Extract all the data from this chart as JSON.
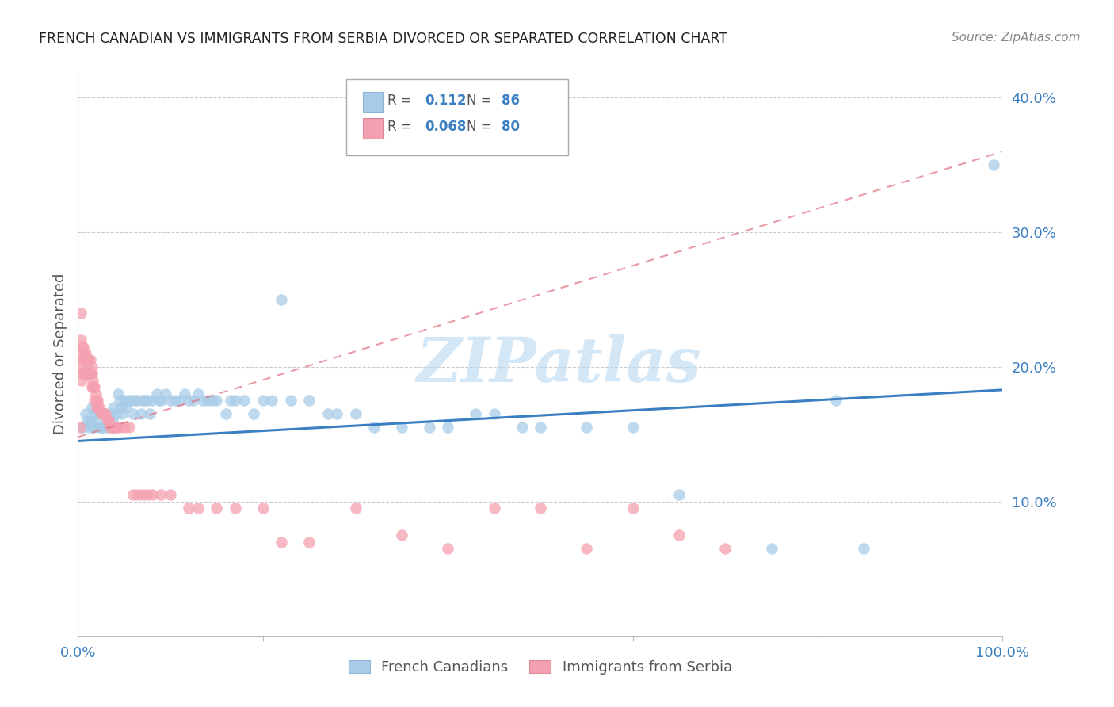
{
  "title": "FRENCH CANADIAN VS IMMIGRANTS FROM SERBIA DIVORCED OR SEPARATED CORRELATION CHART",
  "source": "Source: ZipAtlas.com",
  "ylabel": "Divorced or Separated",
  "xmin": 0.0,
  "xmax": 1.0,
  "ymin": 0.0,
  "ymax": 0.42,
  "series1_label": "French Canadians",
  "series1_R": "0.112",
  "series1_N": "86",
  "series1_color": "#a8cce8",
  "series1_trend_color": "#3a7fc1",
  "series2_label": "Immigrants from Serbia",
  "series2_R": "0.068",
  "series2_N": "80",
  "series2_color": "#f5a0b0",
  "series2_trend_color": "#e07080",
  "watermark": "ZIPatlas",
  "watermark_color": "#b8d8f0",
  "background_color": "#ffffff",
  "grid_color": "#cccccc",
  "axis_color": "#3a7fc1",
  "title_color": "#222222",
  "legend_R_color": "#3a7fc1",
  "series1_x": [
    0.005,
    0.008,
    0.01,
    0.012,
    0.013,
    0.015,
    0.015,
    0.017,
    0.018,
    0.019,
    0.02,
    0.022,
    0.023,
    0.025,
    0.025,
    0.027,
    0.028,
    0.03,
    0.032,
    0.033,
    0.035,
    0.036,
    0.037,
    0.038,
    0.04,
    0.042,
    0.043,
    0.045,
    0.047,
    0.048,
    0.05,
    0.052,
    0.055,
    0.058,
    0.06,
    0.062,
    0.065,
    0.068,
    0.07,
    0.072,
    0.075,
    0.078,
    0.08,
    0.085,
    0.088,
    0.09,
    0.095,
    0.1,
    0.105,
    0.11,
    0.115,
    0.12,
    0.125,
    0.13,
    0.135,
    0.14,
    0.145,
    0.15,
    0.16,
    0.165,
    0.17,
    0.18,
    0.19,
    0.2,
    0.21,
    0.22,
    0.23,
    0.25,
    0.27,
    0.28,
    0.3,
    0.32,
    0.35,
    0.38,
    0.4,
    0.43,
    0.45,
    0.48,
    0.5,
    0.55,
    0.6,
    0.65,
    0.75,
    0.85,
    0.99,
    0.82
  ],
  "series1_y": [
    0.155,
    0.165,
    0.16,
    0.155,
    0.16,
    0.17,
    0.155,
    0.155,
    0.165,
    0.17,
    0.16,
    0.165,
    0.155,
    0.165,
    0.155,
    0.165,
    0.155,
    0.165,
    0.155,
    0.16,
    0.165,
    0.155,
    0.16,
    0.17,
    0.155,
    0.165,
    0.18,
    0.175,
    0.17,
    0.165,
    0.175,
    0.17,
    0.175,
    0.175,
    0.165,
    0.175,
    0.175,
    0.165,
    0.175,
    0.175,
    0.175,
    0.165,
    0.175,
    0.18,
    0.175,
    0.175,
    0.18,
    0.175,
    0.175,
    0.175,
    0.18,
    0.175,
    0.175,
    0.18,
    0.175,
    0.175,
    0.175,
    0.175,
    0.165,
    0.175,
    0.175,
    0.175,
    0.165,
    0.175,
    0.175,
    0.25,
    0.175,
    0.175,
    0.165,
    0.165,
    0.165,
    0.155,
    0.155,
    0.155,
    0.155,
    0.165,
    0.165,
    0.155,
    0.155,
    0.155,
    0.155,
    0.105,
    0.065,
    0.065,
    0.35,
    0.175
  ],
  "series2_x": [
    0.002,
    0.003,
    0.003,
    0.004,
    0.004,
    0.005,
    0.005,
    0.005,
    0.005,
    0.006,
    0.006,
    0.006,
    0.007,
    0.007,
    0.007,
    0.008,
    0.008,
    0.008,
    0.009,
    0.009,
    0.01,
    0.01,
    0.01,
    0.011,
    0.011,
    0.012,
    0.012,
    0.013,
    0.013,
    0.014,
    0.015,
    0.015,
    0.015,
    0.016,
    0.016,
    0.017,
    0.018,
    0.018,
    0.019,
    0.02,
    0.02,
    0.021,
    0.022,
    0.023,
    0.025,
    0.027,
    0.028,
    0.03,
    0.032,
    0.033,
    0.035,
    0.038,
    0.04,
    0.042,
    0.045,
    0.05,
    0.055,
    0.06,
    0.065,
    0.07,
    0.075,
    0.08,
    0.09,
    0.1,
    0.12,
    0.13,
    0.15,
    0.17,
    0.2,
    0.22,
    0.25,
    0.3,
    0.35,
    0.4,
    0.45,
    0.5,
    0.55,
    0.6,
    0.65,
    0.7
  ],
  "series2_y": [
    0.155,
    0.24,
    0.22,
    0.2,
    0.19,
    0.215,
    0.21,
    0.205,
    0.195,
    0.215,
    0.205,
    0.195,
    0.21,
    0.205,
    0.195,
    0.21,
    0.205,
    0.195,
    0.205,
    0.195,
    0.205,
    0.2,
    0.195,
    0.205,
    0.195,
    0.205,
    0.195,
    0.205,
    0.195,
    0.195,
    0.2,
    0.195,
    0.185,
    0.19,
    0.185,
    0.185,
    0.185,
    0.175,
    0.18,
    0.175,
    0.17,
    0.175,
    0.17,
    0.17,
    0.165,
    0.165,
    0.165,
    0.165,
    0.16,
    0.16,
    0.155,
    0.155,
    0.155,
    0.155,
    0.155,
    0.155,
    0.155,
    0.105,
    0.105,
    0.105,
    0.105,
    0.105,
    0.105,
    0.105,
    0.095,
    0.095,
    0.095,
    0.095,
    0.095,
    0.07,
    0.07,
    0.095,
    0.075,
    0.065,
    0.095,
    0.095,
    0.065,
    0.095,
    0.075,
    0.065
  ],
  "trend1_x0": 0.0,
  "trend1_x1": 1.0,
  "trend1_y0": 0.145,
  "trend1_y1": 0.183,
  "trend2_x0": 0.0,
  "trend2_x1": 1.0,
  "trend2_y0": 0.148,
  "trend2_y1": 0.36
}
